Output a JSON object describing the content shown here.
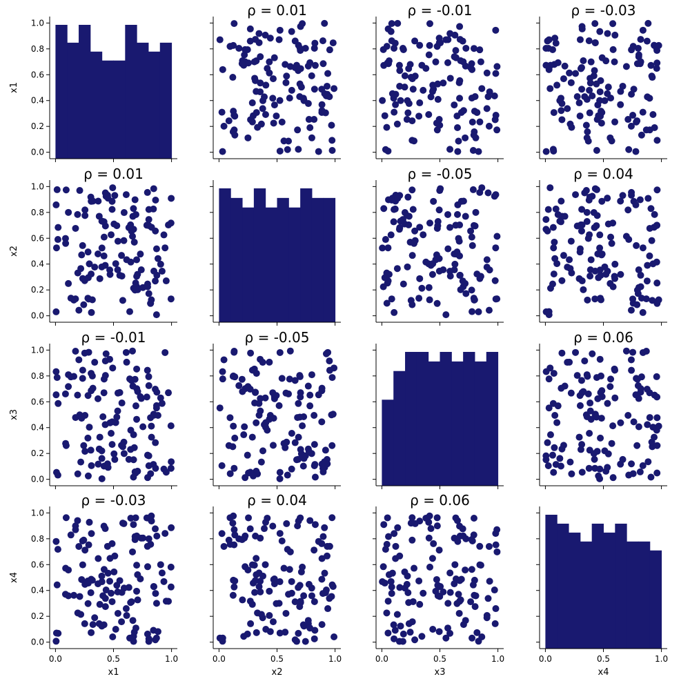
{
  "chart_data": {
    "type": "pairplot",
    "variables": [
      "x1",
      "x2",
      "x3",
      "x4"
    ],
    "color": "#191970",
    "axis_range": [
      -0.05,
      1.05
    ],
    "ticks": [
      "0.0",
      "0.2",
      "0.4",
      "0.6",
      "0.8",
      "1.0"
    ],
    "x_ticks": [
      "0.0",
      "0.5",
      "1.0"
    ],
    "bins": 10,
    "histogram_counts": {
      "x1": [
        15,
        13,
        15,
        12,
        11,
        11,
        15,
        13,
        12,
        13
      ],
      "x2": [
        14,
        13,
        12,
        14,
        12,
        13,
        12,
        14,
        13,
        13
      ],
      "x3": [
        9,
        12,
        14,
        14,
        13,
        14,
        13,
        14,
        13,
        14
      ],
      "x4": [
        15,
        14,
        13,
        12,
        14,
        13,
        14,
        12,
        12,
        11
      ]
    },
    "pair_titles": [
      {
        "row": 0,
        "col": 1,
        "label": "ρ = 0.01"
      },
      {
        "row": 0,
        "col": 2,
        "label": "ρ = -0.01"
      },
      {
        "row": 0,
        "col": 3,
        "label": "ρ = -0.03"
      },
      {
        "row": 1,
        "col": 0,
        "label": "ρ = 0.01"
      },
      {
        "row": 1,
        "col": 2,
        "label": "ρ = -0.05"
      },
      {
        "row": 1,
        "col": 3,
        "label": "ρ = 0.04"
      },
      {
        "row": 2,
        "col": 0,
        "label": "ρ = -0.01"
      },
      {
        "row": 2,
        "col": 1,
        "label": "ρ = -0.05"
      },
      {
        "row": 2,
        "col": 3,
        "label": "ρ = 0.06"
      },
      {
        "row": 3,
        "col": 0,
        "label": "ρ = -0.03"
      },
      {
        "row": 3,
        "col": 1,
        "label": "ρ = 0.04"
      },
      {
        "row": 3,
        "col": 2,
        "label": "ρ = 0.06"
      }
    ],
    "scatter_points_per_panel": 130
  }
}
